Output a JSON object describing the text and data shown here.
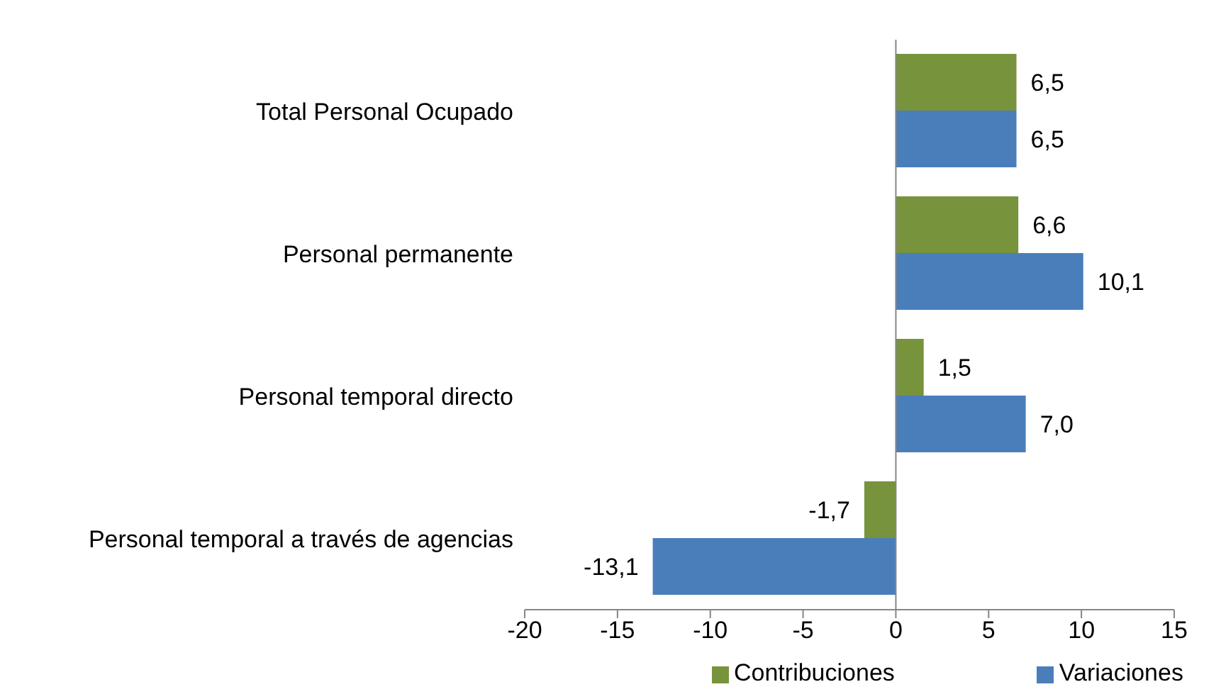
{
  "chart_data": {
    "type": "bar",
    "orientation": "horizontal",
    "categories": [
      "Total Personal Ocupado",
      "Personal permanente",
      "Personal temporal directo",
      "Personal temporal a través de  agencias"
    ],
    "series": [
      {
        "name": "Contribuciones",
        "color": "#77933c",
        "values": [
          6.5,
          6.6,
          1.5,
          -1.7
        ],
        "value_labels": [
          "6,5",
          "6,6",
          "1,5",
          "-1,7"
        ]
      },
      {
        "name": "Variaciones",
        "color": "#4a7ebb",
        "values": [
          6.5,
          10.1,
          7.0,
          -13.1
        ],
        "value_labels": [
          "6,5",
          "10,1",
          "7,0",
          "-13,1"
        ]
      }
    ],
    "xlim": [
      -20,
      15
    ],
    "xticks": [
      -20,
      -15,
      -10,
      -5,
      0,
      5,
      10,
      15
    ],
    "legend": "bottom"
  }
}
